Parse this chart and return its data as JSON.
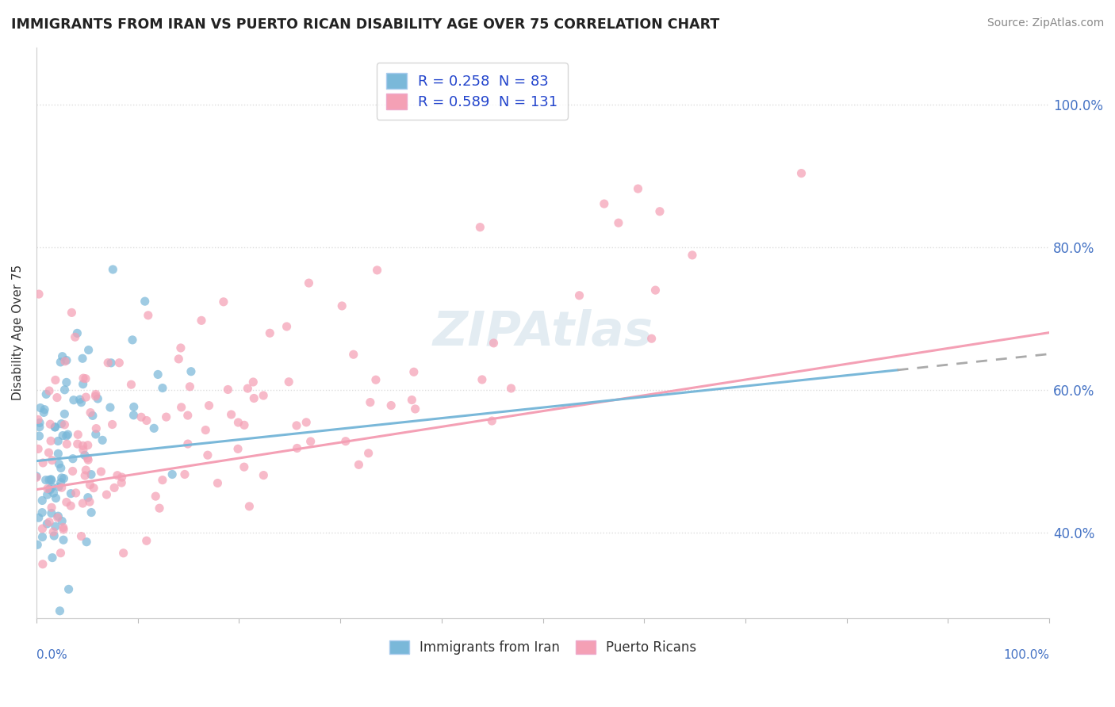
{
  "title": "IMMIGRANTS FROM IRAN VS PUERTO RICAN DISABILITY AGE OVER 75 CORRELATION CHART",
  "source": "Source: ZipAtlas.com",
  "ylabel": "Disability Age Over 75",
  "legend_label1": "R = 0.258  N = 83",
  "legend_label2": "R = 0.589  N = 131",
  "legend_bottom1": "Immigrants from Iran",
  "legend_bottom2": "Puerto Ricans",
  "color_blue": "#7ab8d9",
  "color_pink": "#f4a0b5",
  "watermark": "ZIPAtlas",
  "r1": 0.258,
  "n1": 83,
  "r2": 0.589,
  "n2": 131,
  "background_color": "#ffffff",
  "grid_color": "#dddddd",
  "xlim": [
    0,
    1.0
  ],
  "ylim": [
    0.28,
    1.08
  ],
  "right_yticks": [
    0.4,
    0.6,
    0.8,
    1.0
  ],
  "right_yticklabels": [
    "40.0%",
    "60.0%",
    "80.0%",
    "100.0%"
  ],
  "axis_label_color": "#4472c4"
}
